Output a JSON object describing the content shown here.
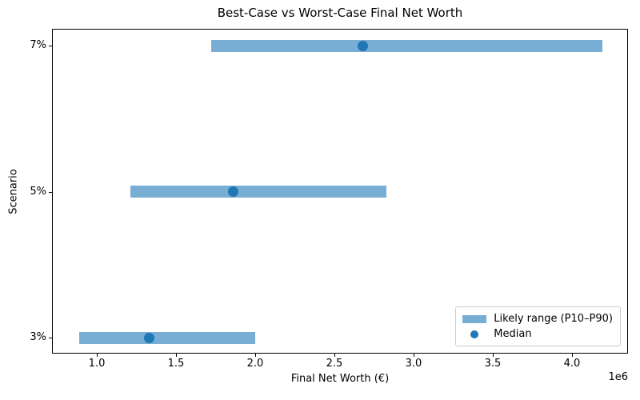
{
  "chart_data": {
    "type": "bar",
    "orientation": "horizontal",
    "title": "Best-Case vs Worst-Case Final Net Worth",
    "xlabel": "Final Net Worth (€)",
    "ylabel": "Scenario",
    "x_offset_label": "1e6",
    "categories": [
      "7%",
      "5%",
      "3%"
    ],
    "series": [
      {
        "name": "Likely range (P10–P90)",
        "role": "range-bar",
        "p10": [
          1720000,
          1210000,
          890000
        ],
        "p90": [
          4190000,
          2830000,
          2000000
        ]
      },
      {
        "name": "Median",
        "role": "point",
        "values": [
          2680000,
          1860000,
          1330000
        ]
      }
    ],
    "xlim": [
      717000,
      4354000
    ],
    "xticks": {
      "values": [
        1000000,
        1500000,
        2000000,
        2500000,
        3000000,
        3500000,
        4000000
      ],
      "labels": [
        "1.0",
        "1.5",
        "2.0",
        "2.5",
        "3.0",
        "3.5",
        "4.0"
      ]
    },
    "legend": {
      "position": "lower right",
      "entries": [
        {
          "label": "Likely range (P10–P90)",
          "marker": "patch"
        },
        {
          "label": "Median",
          "marker": "dot"
        }
      ]
    },
    "colors": {
      "range_bar": "#78aed3",
      "median_dot": "#1f77b4",
      "text": "#000000",
      "spine": "#000000",
      "legend_border": "#cccccc"
    },
    "grid": false
  }
}
